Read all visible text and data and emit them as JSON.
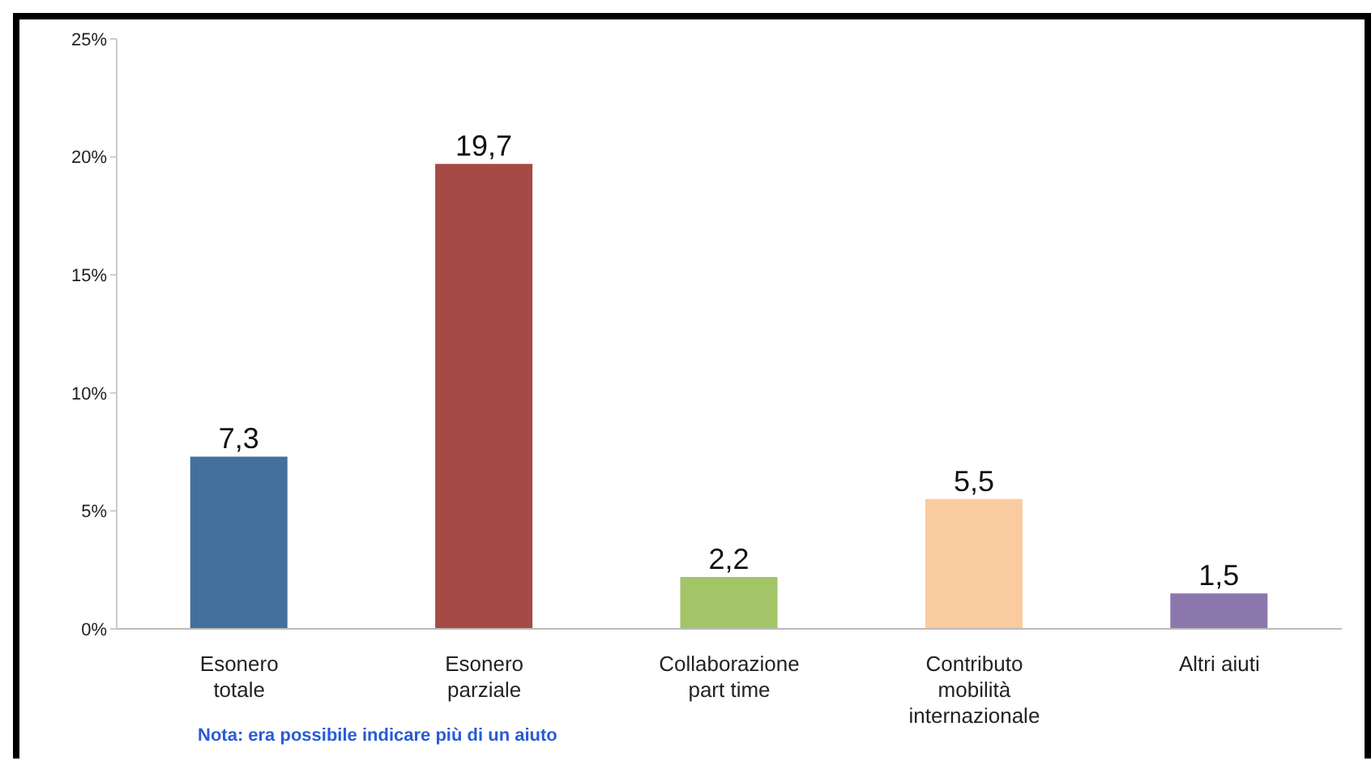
{
  "chart_data": {
    "type": "bar",
    "categories": [
      "Esonero\ntotale",
      "Esonero\nparziale",
      "Collaborazione\npart time",
      "Contributo\nmobilità\ninternazionale",
      "Altri aiuti"
    ],
    "values": [
      7.3,
      19.7,
      2.2,
      5.5,
      1.5
    ],
    "colors": [
      "#44719c",
      "#a54a45",
      "#a4c468",
      "#fbcba0",
      "#8c77ad"
    ],
    "value_labels": [
      "7,3",
      "19,7",
      "2,2",
      "5,5",
      "1,5"
    ],
    "ylim": [
      0,
      25
    ],
    "yticks": [
      {
        "value": 0,
        "label": "0%"
      },
      {
        "value": 5,
        "label": "5%"
      },
      {
        "value": 10,
        "label": "10%"
      },
      {
        "value": 15,
        "label": "15%"
      },
      {
        "value": 20,
        "label": "20%"
      },
      {
        "value": 25,
        "label": "25%"
      }
    ],
    "grid": false,
    "legend": false,
    "annotations": [
      "Nota: era possibile indicare più di un aiuto"
    ]
  }
}
